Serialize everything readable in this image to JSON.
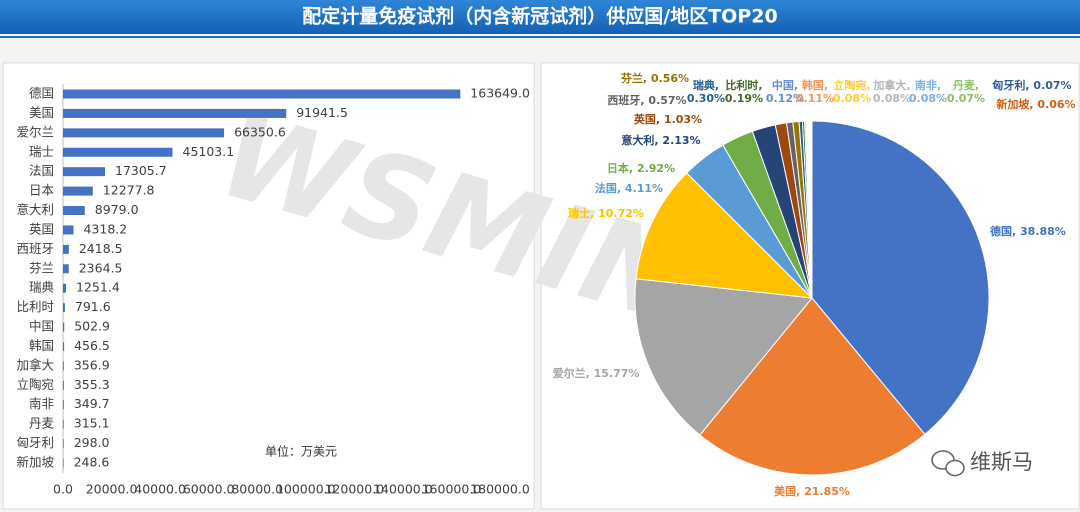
{
  "title": "配定计量免疫试剂（内含新冠试剂）供应国/地区TOP20",
  "watermark": "WSMIN",
  "brand": "维斯马",
  "chart_data": [
    {
      "type": "hbar",
      "categories": [
        "德国",
        "美国",
        "爱尔兰",
        "瑞士",
        "法国",
        "日本",
        "意大利",
        "英国",
        "西班牙",
        "芬兰",
        "瑞典",
        "比利时",
        "中国",
        "韩国",
        "加拿大",
        "立陶宛",
        "南非",
        "丹麦",
        "匈牙利",
        "新加坡"
      ],
      "values": [
        163649.0,
        91941.5,
        66350.6,
        45103.1,
        17305.7,
        12277.8,
        8979.0,
        4318.2,
        2418.5,
        2364.5,
        1251.4,
        791.6,
        502.9,
        456.5,
        356.9,
        355.3,
        349.7,
        315.1,
        298.0,
        248.6
      ],
      "value_labels": [
        "163649.0",
        "91941.5",
        "66350.6",
        "45103.1",
        "17305.7",
        "12277.8",
        "8979.0",
        "4318.2",
        "2418.5",
        "2364.5",
        "1251.4",
        "791.6",
        "502.9",
        "456.5",
        "356.9",
        "355.3",
        "349.7",
        "315.1",
        "298.0",
        "248.6"
      ],
      "color": "#4472c4",
      "xlim": [
        0,
        180000
      ],
      "xticks": [
        {
          "value": 0,
          "label": "0.0"
        },
        {
          "value": 20000,
          "label": "20000.0"
        },
        {
          "value": 40000,
          "label": "40000.0"
        },
        {
          "value": 60000,
          "label": "60000.0"
        },
        {
          "value": 80000,
          "label": "80000.0"
        },
        {
          "value": 100000,
          "label": "100000.0"
        },
        {
          "value": 120000,
          "label": "120000.0"
        },
        {
          "value": 140000,
          "label": "140000.0"
        },
        {
          "value": 160000,
          "label": "160000.0"
        },
        {
          "value": 180000,
          "label": "180000.0"
        }
      ],
      "annotation": "单位：万美元"
    },
    {
      "type": "pie",
      "categories": [
        "德国",
        "美国",
        "爱尔兰",
        "瑞士",
        "法国",
        "日本",
        "意大利",
        "英国",
        "西班牙",
        "芬兰",
        "瑞典",
        "比利时",
        "中国",
        "韩国",
        "立陶宛",
        "加拿大",
        "南非",
        "丹麦",
        "匈牙利",
        "新加坡"
      ],
      "values": [
        38.88,
        21.85,
        15.77,
        10.72,
        4.11,
        2.92,
        2.13,
        1.03,
        0.57,
        0.56,
        0.3,
        0.19,
        0.12,
        0.11,
        0.08,
        0.08,
        0.08,
        0.07,
        0.07,
        0.06
      ],
      "value_labels": [
        "德国, 38.88%",
        "美国, 21.85%",
        "爱尔兰, 15.77%",
        "瑞士, 10.72%",
        "法国, 4.11%",
        "日本, 2.92%",
        "意大利, 2.13%",
        "英国, 1.03%",
        "西班牙, 0.57%",
        "芬兰, 0.56%",
        "瑞典, 0.30%",
        "比利时, 0.19%",
        "中国, 0.12%",
        "韩国, 0.11%",
        "立陶宛, 0.08%",
        "加拿大, 0.08%",
        "南非, 0.08%",
        "丹麦, 0.07%",
        "匈牙利, 0.07%",
        "新加坡, 0.06%"
      ],
      "colors": [
        "#4472c4",
        "#ed7d31",
        "#a5a5a5",
        "#ffc000",
        "#5b9bd5",
        "#70ad47",
        "#264478",
        "#9e480e",
        "#636363",
        "#997300",
        "#255e91",
        "#43682b",
        "#698ed0",
        "#f1975a",
        "#ffcd33",
        "#b7b7b7",
        "#7cafdd",
        "#8cc168",
        "#335aa1",
        "#d26012"
      ]
    }
  ]
}
